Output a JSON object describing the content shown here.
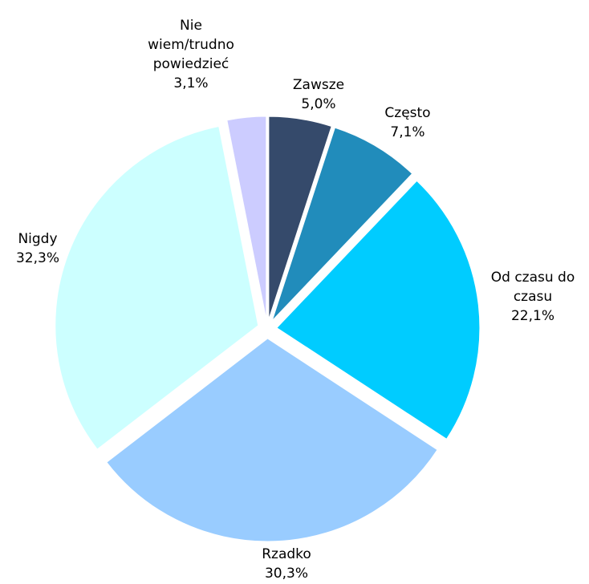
{
  "chart_data": {
    "type": "pie",
    "categories": [
      "Zawsze",
      "Często",
      "Od czasu do czasu",
      "Rzadko",
      "Nigdy",
      "Nie wiem/trudno powiedzieć"
    ],
    "values": [
      5.0,
      7.1,
      22.1,
      30.3,
      32.3,
      3.1
    ],
    "value_labels": [
      "5,0%",
      "7,1%",
      "22,1%",
      "30,3%",
      "32,3%",
      "3,1%"
    ],
    "colors": [
      "#354a6b",
      "#218cbb",
      "#00ccff",
      "#99ccff",
      "#ccffff",
      "#ccccff"
    ]
  }
}
